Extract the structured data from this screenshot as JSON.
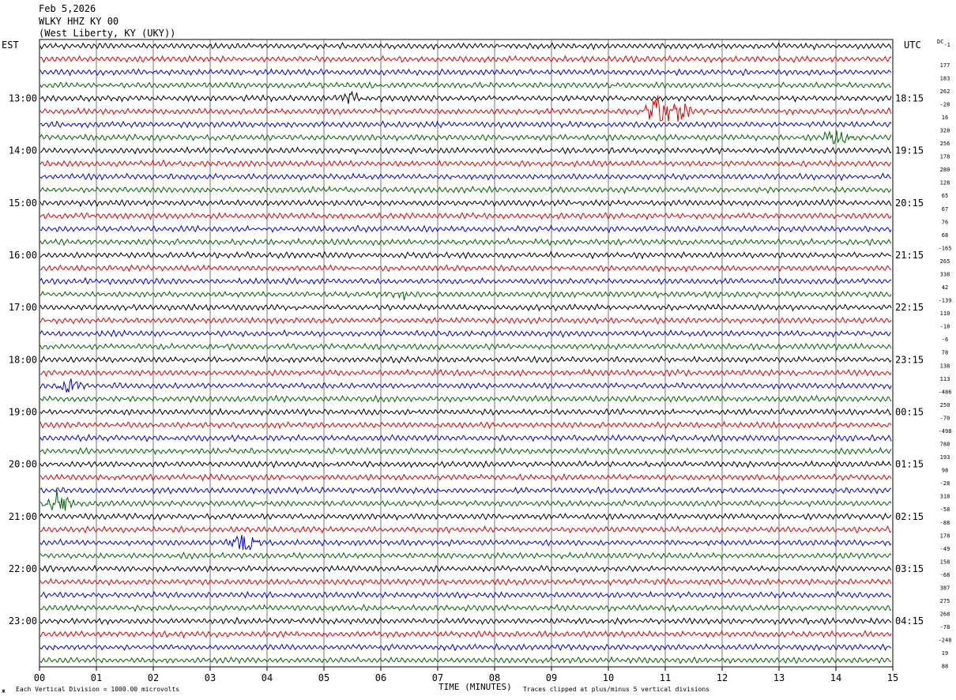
{
  "header": {
    "date": "Feb 5,2026",
    "station": "WLKY HHZ KY 00",
    "location": "(West Liberty, KY (UKY))"
  },
  "left_zone": "EST",
  "right_zone": "UTC",
  "dc_label": "DC",
  "dc_first": "-1",
  "footer": {
    "scale_note": "Each Vertical Division = 1000.00 microvolts",
    "clip_note": "Traces clipped at plus/minus 5 vertical divisions",
    "mark": "ж"
  },
  "colors": {
    "cycle": [
      "#000000",
      "#e00000",
      "#0000e0",
      "#006400"
    ],
    "grid": "#000000"
  },
  "chart_data": {
    "type": "line",
    "title": "",
    "xlabel": "TIME (MINUTES)",
    "x_ticks": [
      "00",
      "01",
      "02",
      "03",
      "04",
      "05",
      "06",
      "07",
      "08",
      "09",
      "10",
      "11",
      "12",
      "13",
      "14",
      "15"
    ],
    "xlim": [
      0,
      15
    ],
    "rows": 48,
    "left_hour_labels": [
      "13:00",
      "14:00",
      "15:00",
      "16:00",
      "17:00",
      "18:00",
      "19:00",
      "20:00",
      "21:00",
      "22:00",
      "23:00"
    ],
    "right_hour_labels": [
      "18:15",
      "19:15",
      "20:15",
      "21:15",
      "22:15",
      "23:15",
      "00:15",
      "01:15",
      "02:15",
      "03:15",
      "04:15"
    ],
    "hour_label_first_row": 4,
    "rows_per_hour": 4,
    "dc_offsets": [
      "177",
      "183",
      "262",
      "-28",
      "16",
      "328",
      "256",
      "178",
      "280",
      "128",
      "65",
      "67",
      "76",
      "68",
      "-165",
      "265",
      "338",
      "42",
      "-139",
      "110",
      "-18",
      "-6",
      "78",
      "138",
      "113",
      "-486",
      "250",
      "-70",
      "-498",
      "788",
      "193",
      "98",
      "-28",
      "318",
      "-58",
      "-88",
      "178",
      "-49",
      "158",
      "-68",
      "387",
      "275",
      "268",
      "-78",
      "-248",
      "19",
      "88"
    ],
    "events": [
      {
        "row": 4,
        "minute": 5.5,
        "amp": 1.2
      },
      {
        "row": 5,
        "minute": 10.9,
        "amp": 3.5
      },
      {
        "row": 5,
        "minute": 11.2,
        "amp": 2.5
      },
      {
        "row": 7,
        "minute": 14.0,
        "amp": 1.5
      },
      {
        "row": 19,
        "minute": 6.3,
        "amp": 1.0
      },
      {
        "row": 26,
        "minute": 0.5,
        "amp": 1.6
      },
      {
        "row": 35,
        "minute": 0.3,
        "amp": 2.6
      },
      {
        "row": 38,
        "minute": 3.6,
        "amp": 2.4
      }
    ]
  }
}
